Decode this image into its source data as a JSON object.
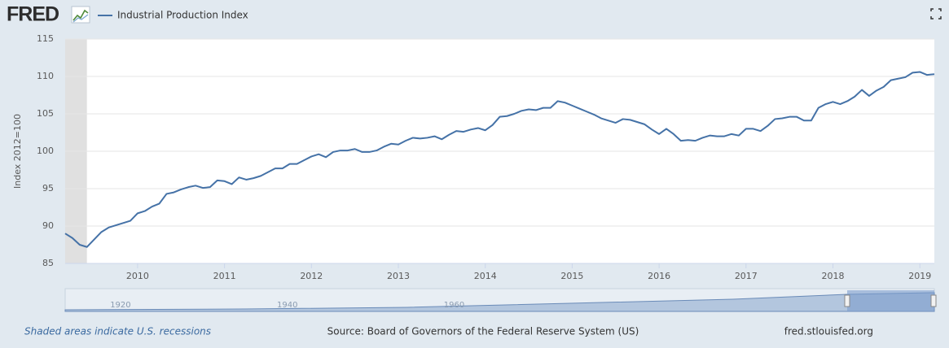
{
  "chart_data": {
    "type": "line",
    "logo": "FRED",
    "ylabel": "Index 2012=100",
    "footer_left": "Shaded areas indicate U.S. recessions",
    "source": "Source: Board of Governors of the Federal Reserve System (US)",
    "site": "fred.stlouisfed.org",
    "navigator_labels": [
      1920,
      1940,
      1960
    ],
    "recession": [
      "2007-12",
      "2009-06"
    ],
    "xlim": [
      "2009-03",
      "2019-03"
    ],
    "xticks": [
      2010,
      2011,
      2012,
      2013,
      2014,
      2015,
      2016,
      2017,
      2018,
      2019
    ],
    "ylim": [
      85,
      115
    ],
    "yticks": [
      85,
      90,
      95,
      100,
      105,
      110,
      115
    ],
    "grid": true,
    "x": [
      "2009-03",
      "2009-04",
      "2009-05",
      "2009-06",
      "2009-07",
      "2009-08",
      "2009-09",
      "2009-10",
      "2009-11",
      "2009-12",
      "2010-01",
      "2010-02",
      "2010-03",
      "2010-04",
      "2010-05",
      "2010-06",
      "2010-07",
      "2010-08",
      "2010-09",
      "2010-10",
      "2010-11",
      "2010-12",
      "2011-01",
      "2011-02",
      "2011-03",
      "2011-04",
      "2011-05",
      "2011-06",
      "2011-07",
      "2011-08",
      "2011-09",
      "2011-10",
      "2011-11",
      "2011-12",
      "2012-01",
      "2012-02",
      "2012-03",
      "2012-04",
      "2012-05",
      "2012-06",
      "2012-07",
      "2012-08",
      "2012-09",
      "2012-10",
      "2012-11",
      "2012-12",
      "2013-01",
      "2013-02",
      "2013-03",
      "2013-04",
      "2013-05",
      "2013-06",
      "2013-07",
      "2013-08",
      "2013-09",
      "2013-10",
      "2013-11",
      "2013-12",
      "2014-01",
      "2014-02",
      "2014-03",
      "2014-04",
      "2014-05",
      "2014-06",
      "2014-07",
      "2014-08",
      "2014-09",
      "2014-10",
      "2014-11",
      "2014-12",
      "2015-01",
      "2015-02",
      "2015-03",
      "2015-04",
      "2015-05",
      "2015-06",
      "2015-07",
      "2015-08",
      "2015-09",
      "2015-10",
      "2015-11",
      "2015-12",
      "2016-01",
      "2016-02",
      "2016-03",
      "2016-04",
      "2016-05",
      "2016-06",
      "2016-07",
      "2016-08",
      "2016-09",
      "2016-10",
      "2016-11",
      "2016-12",
      "2017-01",
      "2017-02",
      "2017-03",
      "2017-04",
      "2017-05",
      "2017-06",
      "2017-07",
      "2017-08",
      "2017-09",
      "2017-10",
      "2017-11",
      "2017-12",
      "2018-01",
      "2018-02",
      "2018-03",
      "2018-04",
      "2018-05",
      "2018-06",
      "2018-07",
      "2018-08",
      "2018-09",
      "2018-10",
      "2018-11",
      "2018-12",
      "2019-01",
      "2019-02",
      "2019-03"
    ],
    "series": [
      {
        "name": "Industrial Production Index",
        "color": "#4572a7",
        "values": [
          89.0,
          88.4,
          87.5,
          87.2,
          88.2,
          89.2,
          89.8,
          90.1,
          90.4,
          90.7,
          91.7,
          92.0,
          92.6,
          93.0,
          94.3,
          94.5,
          94.9,
          95.2,
          95.4,
          95.1,
          95.2,
          96.1,
          96.0,
          95.6,
          96.5,
          96.2,
          96.4,
          96.7,
          97.2,
          97.7,
          97.7,
          98.3,
          98.3,
          98.8,
          99.3,
          99.6,
          99.2,
          99.9,
          100.1,
          100.1,
          100.3,
          99.9,
          99.9,
          100.1,
          100.6,
          101.0,
          100.9,
          101.4,
          101.8,
          101.7,
          101.8,
          102.0,
          101.6,
          102.2,
          102.7,
          102.6,
          102.9,
          103.1,
          102.8,
          103.5,
          104.6,
          104.7,
          105.0,
          105.4,
          105.6,
          105.5,
          105.8,
          105.8,
          106.7,
          106.5,
          106.1,
          105.7,
          105.3,
          104.9,
          104.4,
          104.1,
          103.8,
          104.3,
          104.2,
          103.9,
          103.6,
          102.9,
          102.3,
          103.0,
          102.3,
          101.4,
          101.5,
          101.4,
          101.8,
          102.1,
          102.0,
          102.0,
          102.3,
          102.1,
          103.0,
          103.0,
          102.7,
          103.4,
          104.3,
          104.4,
          104.6,
          104.6,
          104.1,
          104.1,
          105.8,
          106.3,
          106.6,
          106.3,
          106.7,
          107.3,
          108.2,
          107.4,
          108.1,
          108.6,
          109.5,
          109.7,
          109.9,
          110.5,
          110.6,
          110.2,
          110.3
        ]
      }
    ]
  }
}
